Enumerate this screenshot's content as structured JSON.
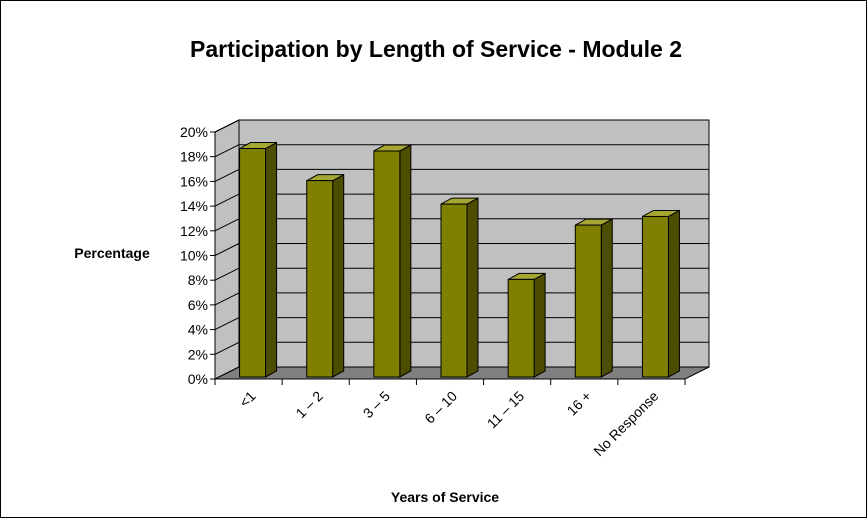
{
  "chart_data": {
    "type": "bar",
    "title": "Participation by Length of Service - Module 2",
    "xlabel": "Years of Service",
    "ylabel": "Percentage",
    "categories": [
      "<1",
      "1 – 2",
      "3 – 5",
      "6 – 10",
      "11 – 15",
      "16 +",
      "No Response"
    ],
    "values": [
      18.5,
      15.9,
      18.3,
      14.0,
      7.9,
      12.3,
      13.0
    ],
    "ylim": [
      0,
      20
    ],
    "yticks": [
      "0%",
      "2%",
      "4%",
      "6%",
      "8%",
      "10%",
      "12%",
      "14%",
      "16%",
      "18%",
      "20%"
    ],
    "grid": true,
    "legend": "none",
    "three_d": true
  },
  "colors": {
    "bar_front": "#808000",
    "bar_side": "#4d4d00",
    "bar_top": "#a6a633",
    "plot_wall": "#c0c0c0",
    "floor": "#808080"
  }
}
